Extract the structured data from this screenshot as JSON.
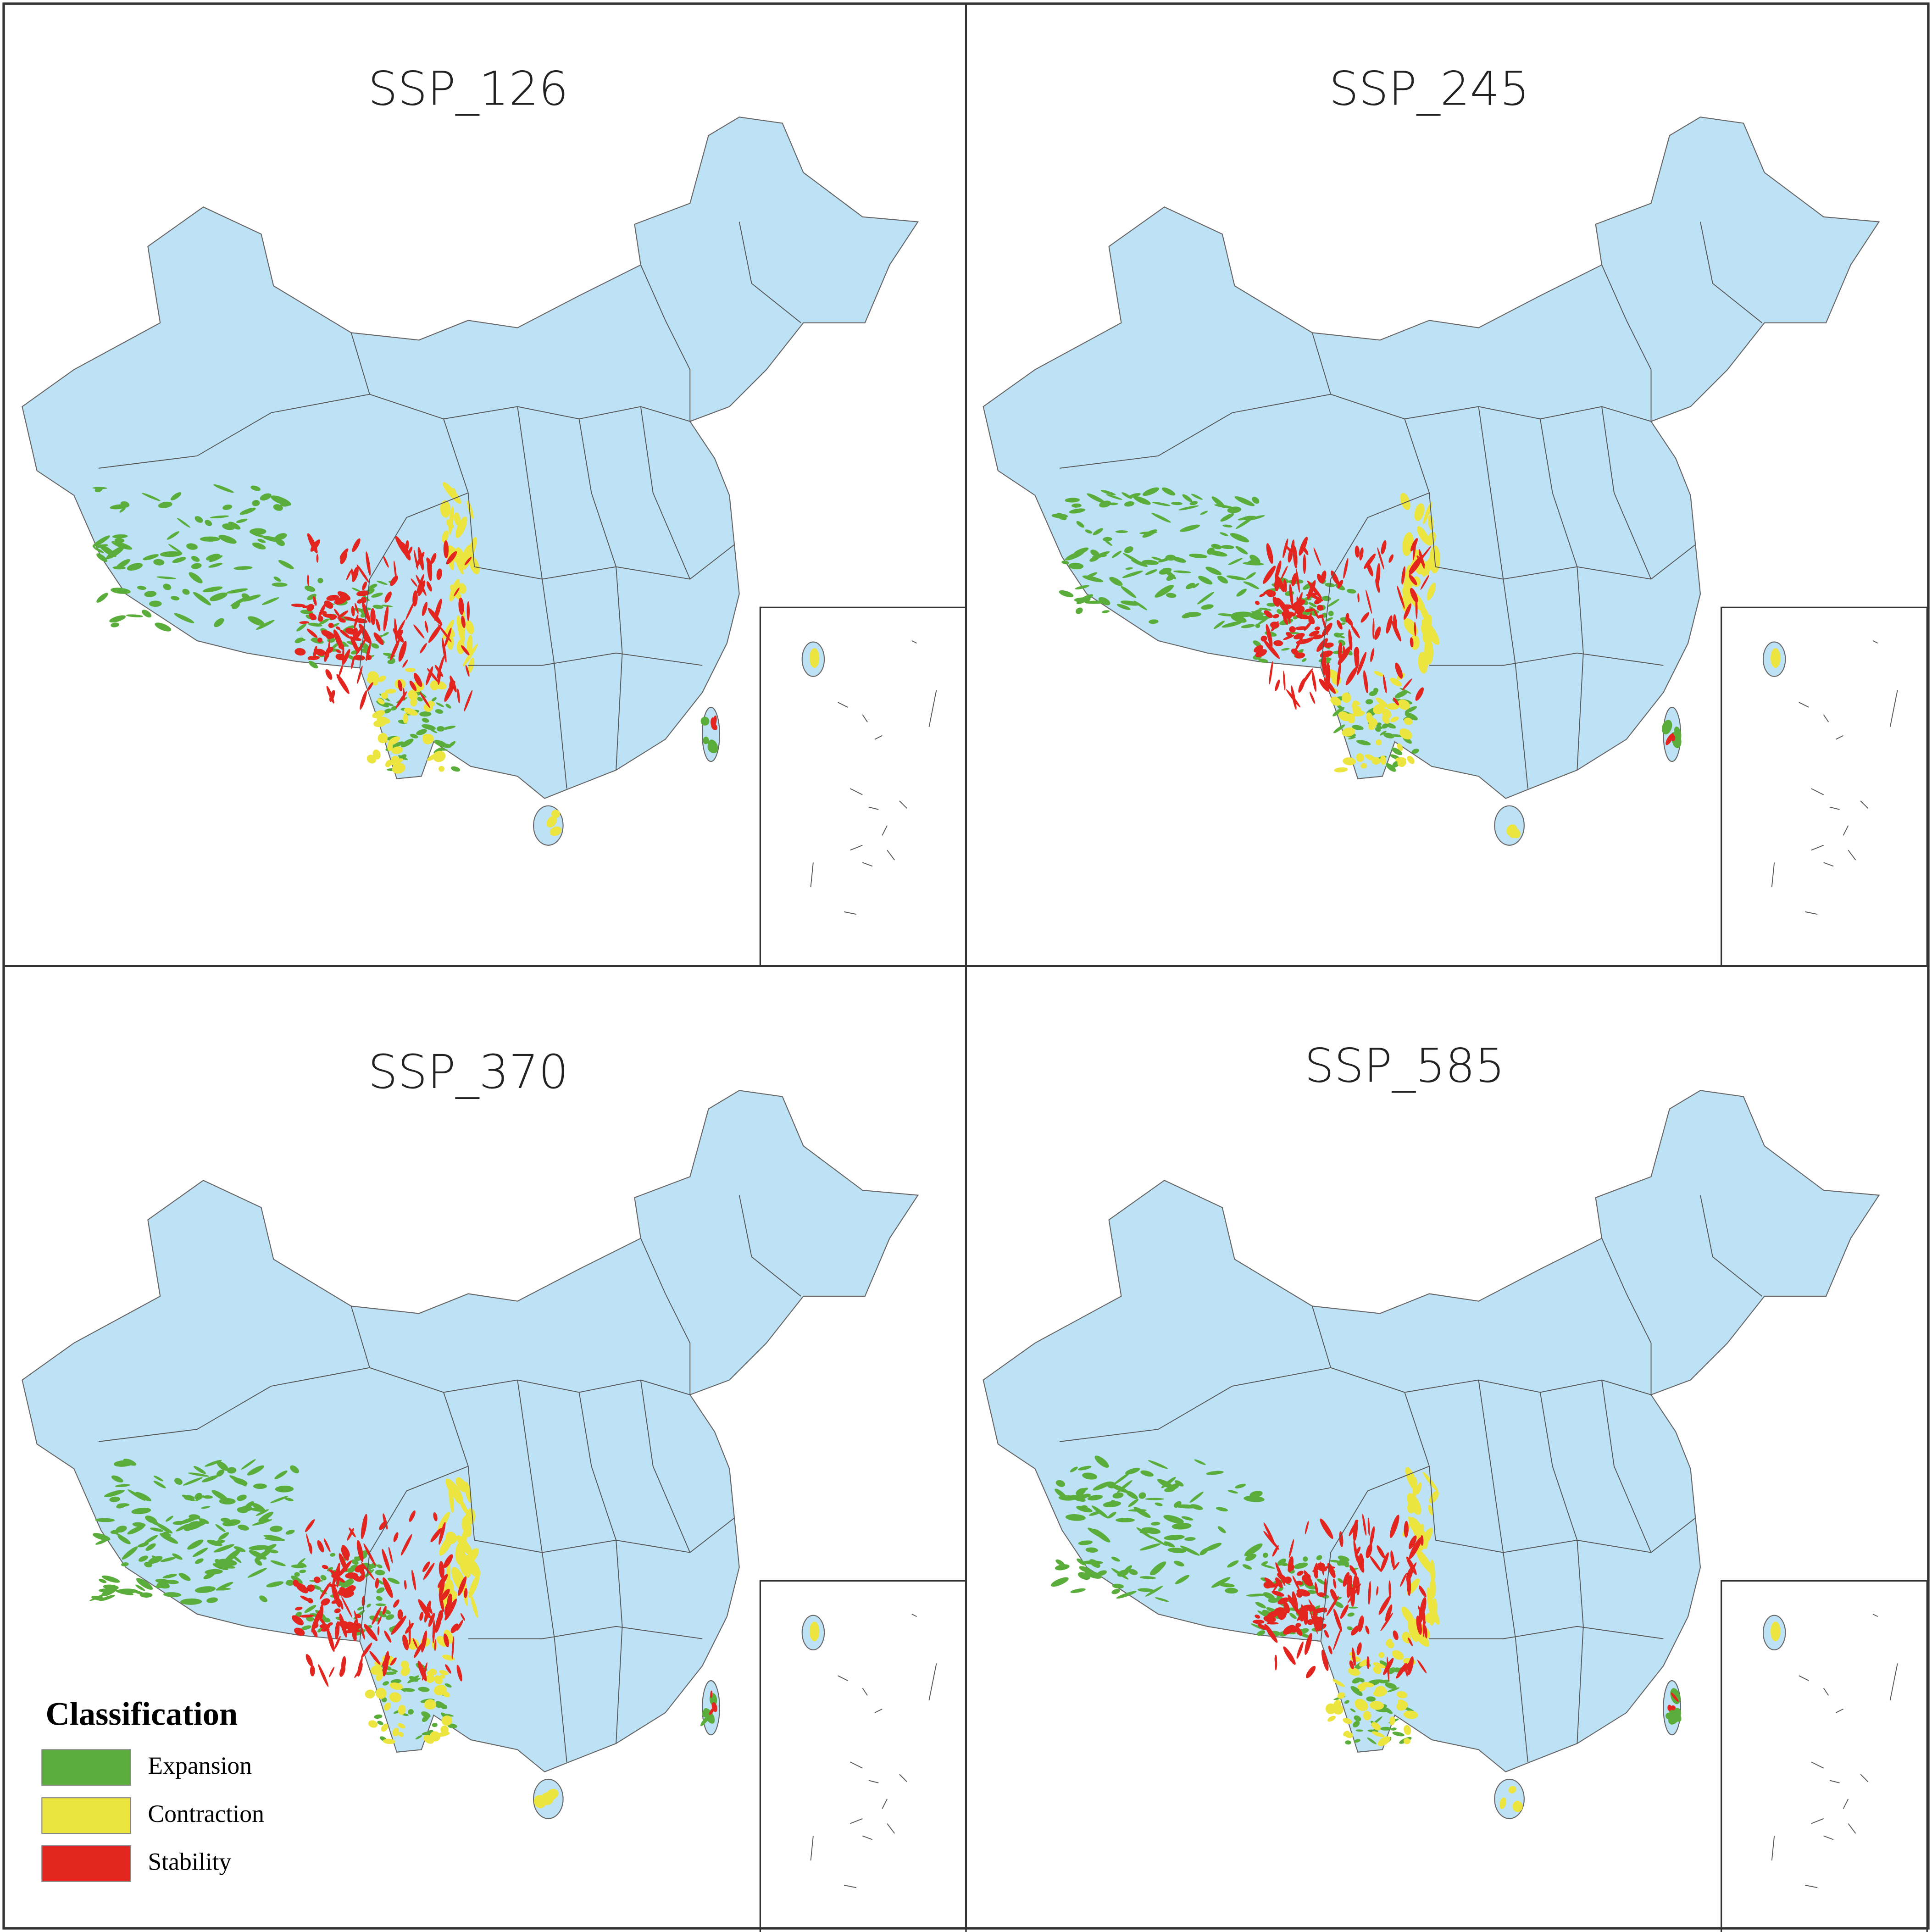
{
  "panels": [
    {
      "title": "SSP_126"
    },
    {
      "title": "SSP_245"
    },
    {
      "title": "SSP_370"
    },
    {
      "title": "SSP_585"
    }
  ],
  "legend": {
    "title": "Classification",
    "items": [
      {
        "label": "Expansion",
        "color": "#5aad3a"
      },
      {
        "label": "Contraction",
        "color": "#ede53f"
      },
      {
        "label": "Stability",
        "color": "#e2261f"
      }
    ]
  },
  "map_color": "#bde1f5"
}
